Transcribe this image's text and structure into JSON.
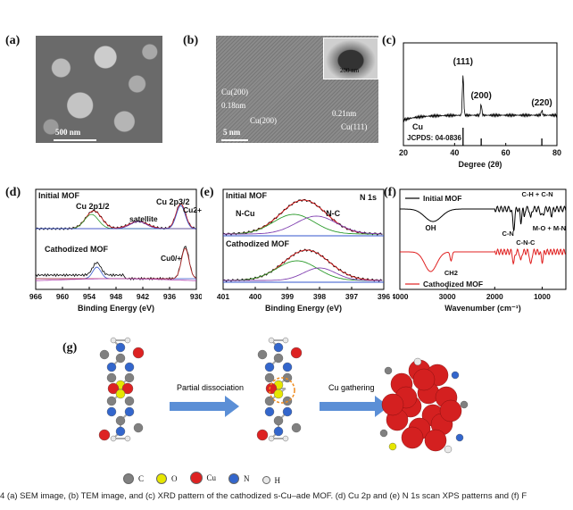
{
  "panels": {
    "a": {
      "label": "(a)",
      "scale": "500 nm"
    },
    "b": {
      "label": "(b)",
      "scale": "5 nm",
      "inset_scale": "200 nm",
      "annotations": [
        "Cu(200)",
        "0.18nm",
        "Cu(200)",
        "0.21nm",
        "Cu(111)"
      ]
    },
    "c": {
      "label": "(c)"
    },
    "d": {
      "label": "(d)"
    },
    "e": {
      "label": "(e)"
    },
    "f": {
      "label": "(f)"
    },
    "g": {
      "label": "(g)",
      "step1": "Partial dissociation",
      "step2": "Cu gathering"
    }
  },
  "legend": [
    {
      "symbol": "C",
      "color": "#808080"
    },
    {
      "symbol": "O",
      "color": "#e6e600"
    },
    {
      "symbol": "Cu",
      "color": "#dd2222"
    },
    {
      "symbol": "N",
      "color": "#3366cc"
    },
    {
      "symbol": "H",
      "color": "#e8e8e8"
    }
  ],
  "caption": "4  (a) SEM image, (b) TEM image, and (c) XRD pattern of the cathodized s-Cu–ade MOF. (d) Cu 2p and (e) N 1s scan XPS patterns and (f) F",
  "chart_data": [
    {
      "type": "line",
      "panel": "c",
      "xlabel": "Degree (2θ)",
      "xlim": [
        20,
        80
      ],
      "xticks": [
        20,
        40,
        60,
        80
      ],
      "peaks": [
        {
          "label": "(111)",
          "x": 43.3
        },
        {
          "label": "(200)",
          "x": 50.4
        },
        {
          "label": "(220)",
          "x": 74.1
        }
      ],
      "reference": {
        "label": "Cu",
        "card": "JCPDS: 04-0836",
        "x": [
          43.3,
          50.4,
          74.1
        ]
      }
    },
    {
      "type": "line",
      "panel": "d",
      "xlabel": "Binding Energy (eV)",
      "xlim": [
        966,
        930
      ],
      "xticks": [
        966,
        960,
        954,
        948,
        942,
        936,
        930
      ],
      "series": [
        {
          "name": "Initial MOF",
          "annotations": [
            "Cu 2p1/2",
            "satellite",
            "Cu 2p3/2",
            "Cu2+"
          ]
        },
        {
          "name": "Cathodized MOF",
          "annotations": [
            "Cu0/+"
          ]
        }
      ]
    },
    {
      "type": "line",
      "panel": "e",
      "title": "N 1s",
      "xlabel": "Binding Energy (eV)",
      "xlim": [
        401,
        396
      ],
      "xticks": [
        401,
        400,
        399,
        398,
        397,
        396
      ],
      "series": [
        {
          "name": "Initial MOF",
          "annotations": [
            "N-Cu",
            "N-C"
          ]
        },
        {
          "name": "Cathodized MOF"
        }
      ]
    },
    {
      "type": "line",
      "panel": "f",
      "xlabel": "Wavenumber (cm⁻¹)",
      "xlim": [
        4000,
        500
      ],
      "xticks": [
        4000,
        3000,
        2000,
        1000
      ],
      "series": [
        {
          "name": "Initial MOF",
          "color": "#000000",
          "annotations": [
            "OH",
            "C-H + C-N",
            "C-N",
            "C-N-C",
            "M-O + M-N"
          ]
        },
        {
          "name": "Cathodized MOF",
          "color": "#e02020",
          "annotations": [
            "CH2"
          ]
        }
      ]
    }
  ]
}
